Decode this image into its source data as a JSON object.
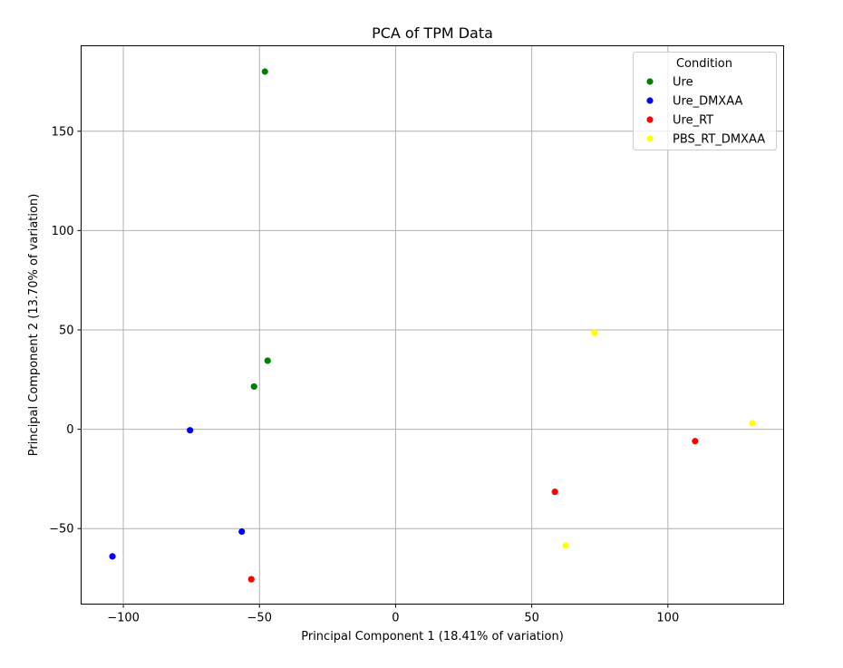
{
  "chart_data": {
    "type": "scatter",
    "title": "PCA of TPM Data",
    "xlabel": "Principal Component 1 (18.41% of variation)",
    "ylabel": "Principal Component 2 (13.70% of variation)",
    "xlim": [
      -115.5,
      142.5
    ],
    "ylim": [
      -88,
      193
    ],
    "x_ticks": [
      -100,
      -50,
      0,
      50,
      100
    ],
    "y_ticks": [
      -50,
      0,
      50,
      100,
      150
    ],
    "x_tick_labels": [
      "−100",
      "−50",
      "0",
      "50",
      "100"
    ],
    "y_tick_labels": [
      "−50",
      "0",
      "50",
      "100",
      "150"
    ],
    "grid": true,
    "legend": {
      "title": "Condition",
      "placement": "top-right"
    },
    "series": [
      {
        "name": "Ure",
        "color": "#008000",
        "points": [
          [
            -48,
            180
          ],
          [
            -47,
            34.5
          ],
          [
            -52,
            21.5
          ]
        ]
      },
      {
        "name": "Ure_DMXAA",
        "color": "#0000ff",
        "points": [
          [
            -75.5,
            -0.5
          ],
          [
            -56.5,
            -51.5
          ],
          [
            -104,
            -64
          ]
        ]
      },
      {
        "name": "Ure_RT",
        "color": "#ff0000",
        "points": [
          [
            58.5,
            -31.5
          ],
          [
            110,
            -6
          ],
          [
            -53,
            -75.5
          ]
        ]
      },
      {
        "name": "PBS_RT_DMXAA",
        "color": "#ffff00",
        "points": [
          [
            73,
            48.5
          ],
          [
            131,
            3
          ],
          [
            62.5,
            -58.5
          ]
        ]
      }
    ]
  }
}
